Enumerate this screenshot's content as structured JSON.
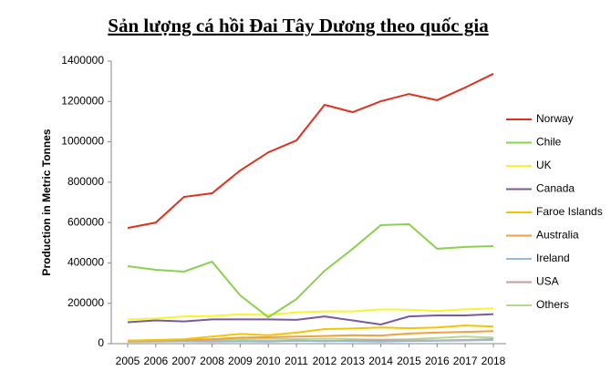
{
  "chart_data": {
    "type": "line",
    "title": "Sản lượng cá hồi Đai Tây Dương theo quốc gia",
    "y_label": "Production in Metric Tonnes",
    "x": [
      2005,
      2006,
      2007,
      2008,
      2009,
      2010,
      2011,
      2012,
      2013,
      2014,
      2015,
      2016,
      2017,
      2018
    ],
    "xlim": [
      2005,
      2018
    ],
    "xticks": [
      2005,
      2006,
      2007,
      2008,
      2009,
      2010,
      2011,
      2012,
      2013,
      2014,
      2015,
      2016,
      2017,
      2018
    ],
    "ylim": [
      0,
      1400000
    ],
    "yticks": [
      0,
      200000,
      400000,
      600000,
      800000,
      1000000,
      1200000,
      1400000
    ],
    "grid": false,
    "legend": "right",
    "series": [
      {
        "name": "Norway",
        "color": "#e0301e",
        "values": [
          573000,
          600000,
          727000,
          745000,
          858000,
          948000,
          1007000,
          1183000,
          1147000,
          1201000,
          1237000,
          1206000,
          1269000,
          1337000
        ]
      },
      {
        "name": "Chile",
        "color": "#8bd14e",
        "values": [
          384000,
          366000,
          357000,
          406000,
          239000,
          131000,
          221000,
          361000,
          470000,
          587000,
          592000,
          470000,
          479000,
          483000
        ]
      },
      {
        "name": "UK",
        "color": "#f5f530",
        "values": [
          120000,
          125000,
          135000,
          137000,
          145000,
          142000,
          155000,
          160000,
          160000,
          170000,
          168000,
          162000,
          170000,
          175000
        ]
      },
      {
        "name": "Canada",
        "color": "#7a5a9e",
        "values": [
          106000,
          115000,
          110000,
          120000,
          120000,
          120000,
          118000,
          135000,
          115000,
          95000,
          135000,
          140000,
          140000,
          146000
        ]
      },
      {
        "name": "Faroe Islands",
        "color": "#f5c400",
        "values": [
          15000,
          18000,
          22000,
          35000,
          48000,
          42000,
          55000,
          72000,
          75000,
          80000,
          76000,
          80000,
          90000,
          85000
        ]
      },
      {
        "name": "Australia",
        "color": "#f0a040",
        "values": [
          15000,
          16000,
          18000,
          22000,
          30000,
          32000,
          35000,
          38000,
          42000,
          40000,
          50000,
          55000,
          58000,
          62000
        ]
      },
      {
        "name": "Ireland",
        "color": "#9ab8d8",
        "values": [
          14000,
          13000,
          14000,
          12000,
          13000,
          13000,
          13000,
          14000,
          12000,
          10000,
          13000,
          14000,
          16000,
          18000
        ]
      },
      {
        "name": "USA",
        "color": "#c99a9a",
        "values": [
          10000,
          11000,
          12000,
          10000,
          12000,
          10000,
          15000,
          12000,
          15000,
          17000,
          15000,
          16000,
          18000,
          22000
        ]
      },
      {
        "name": "Others",
        "color": "#b8d88a",
        "values": [
          14000,
          15000,
          17000,
          20000,
          22000,
          25000,
          22000,
          25000,
          22000,
          20000,
          22000,
          28000,
          35000,
          30000
        ]
      }
    ]
  }
}
